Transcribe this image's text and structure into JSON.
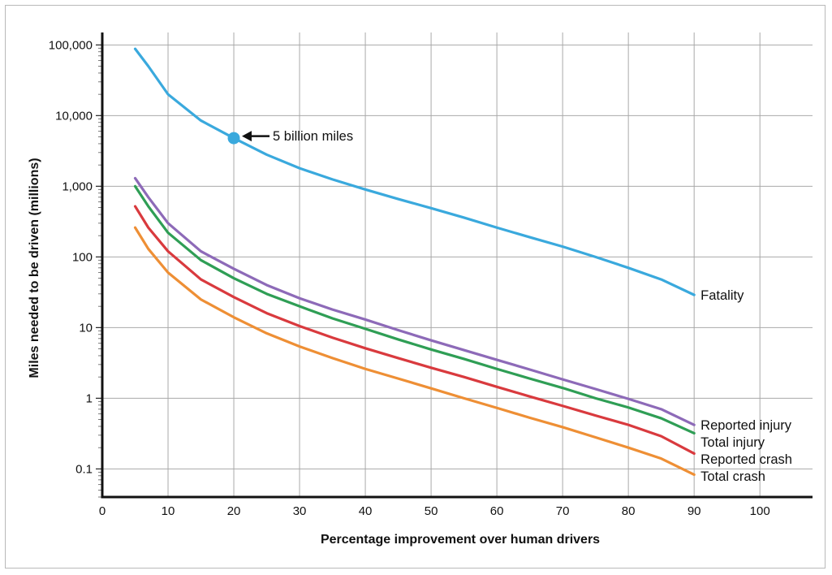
{
  "chart_data": {
    "type": "line",
    "xlabel": "Percentage improvement over human drivers",
    "ylabel": "Miles needed to be driven (millions)",
    "xlim": [
      0,
      108
    ],
    "ylim": [
      0.04,
      150000
    ],
    "y_scale": "log",
    "grid": true,
    "x_ticks": [
      0,
      10,
      20,
      30,
      40,
      50,
      60,
      70,
      80,
      90,
      100
    ],
    "x_tick_labels": [
      "0",
      "10",
      "20",
      "30",
      "40",
      "50",
      "60",
      "70",
      "80",
      "90",
      "100"
    ],
    "y_ticks": [
      0.1,
      1,
      10,
      100,
      1000,
      10000,
      100000
    ],
    "y_tick_labels": [
      "0.1",
      "1",
      "10",
      "100",
      "1,000",
      "10,000",
      "100,000"
    ],
    "x": [
      5,
      7,
      10,
      15,
      20,
      25,
      30,
      35,
      40,
      45,
      50,
      55,
      60,
      65,
      70,
      75,
      80,
      85,
      90
    ],
    "series": [
      {
        "name": "Fatality",
        "color": "#3aa9dd",
        "values": [
          88000,
          50000,
          20000,
          8500,
          4800,
          2800,
          1800,
          1250,
          900,
          660,
          490,
          360,
          260,
          190,
          140,
          100,
          70,
          48,
          29
        ]
      },
      {
        "name": "Reported injury",
        "color": "#8d6ab8",
        "values": [
          1300,
          700,
          300,
          120,
          68,
          40,
          26,
          18,
          13,
          9.2,
          6.6,
          4.8,
          3.5,
          2.55,
          1.85,
          1.35,
          0.98,
          0.7,
          0.42
        ]
      },
      {
        "name": "Total injury",
        "color": "#2f9e55",
        "values": [
          1000,
          520,
          220,
          90,
          50,
          30,
          20,
          13.5,
          9.6,
          6.8,
          4.9,
          3.6,
          2.6,
          1.9,
          1.4,
          1.0,
          0.74,
          0.52,
          0.32
        ]
      },
      {
        "name": "Reported crash",
        "color": "#d93a3e",
        "values": [
          520,
          260,
          120,
          48,
          27,
          16,
          10.5,
          7.2,
          5.1,
          3.7,
          2.7,
          2.0,
          1.45,
          1.06,
          0.78,
          0.57,
          0.42,
          0.29,
          0.165
        ]
      },
      {
        "name": "Total crash",
        "color": "#ee8f35",
        "values": [
          260,
          130,
          60,
          25,
          14,
          8.3,
          5.4,
          3.7,
          2.6,
          1.9,
          1.38,
          1.0,
          0.73,
          0.53,
          0.39,
          0.28,
          0.2,
          0.14,
          0.083
        ]
      }
    ],
    "annotation": {
      "text": "5 billion miles",
      "x": 20,
      "y": 4800,
      "color": "#3aa9dd"
    }
  }
}
